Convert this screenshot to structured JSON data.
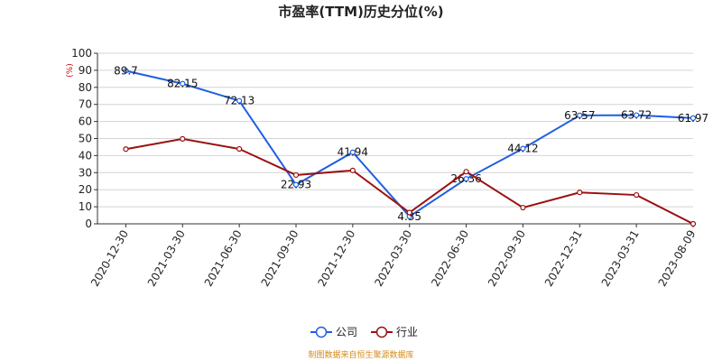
{
  "chart_data": {
    "type": "line",
    "title": "市盈率(TTM)历史分位(%)",
    "unit_label": "(%)",
    "categories": [
      "2020-12-30",
      "2021-03-30",
      "2021-06-30",
      "2021-09-30",
      "2021-12-30",
      "2022-03-30",
      "2022-06-30",
      "2022-09-30",
      "2022-12-31",
      "2023-03-31",
      "2023-08-09"
    ],
    "ylim": [
      0,
      100
    ],
    "yticks": [
      0,
      10,
      20,
      30,
      40,
      50,
      60,
      70,
      80,
      90,
      100
    ],
    "grid": true,
    "legend_position": "bottom-center",
    "series": [
      {
        "name": "公司",
        "color": "#1f5fe0",
        "values": [
          89.7,
          82.15,
          72.13,
          22.93,
          41.94,
          4.35,
          26.36,
          44.12,
          63.57,
          63.72,
          61.97
        ],
        "labels": [
          "89.7",
          "82.15",
          "72.13",
          "22.93",
          "41.94",
          "4.35",
          "26.36",
          "44.12",
          "63.57",
          "63.72",
          "61.97"
        ]
      },
      {
        "name": "行业",
        "color": "#9b1010",
        "values": [
          43.8,
          49.8,
          43.9,
          28.6,
          31.3,
          6.6,
          30.6,
          9.5,
          18.4,
          16.9,
          0
        ]
      }
    ]
  },
  "source_text": "制图数据来自恒生聚源数据库"
}
